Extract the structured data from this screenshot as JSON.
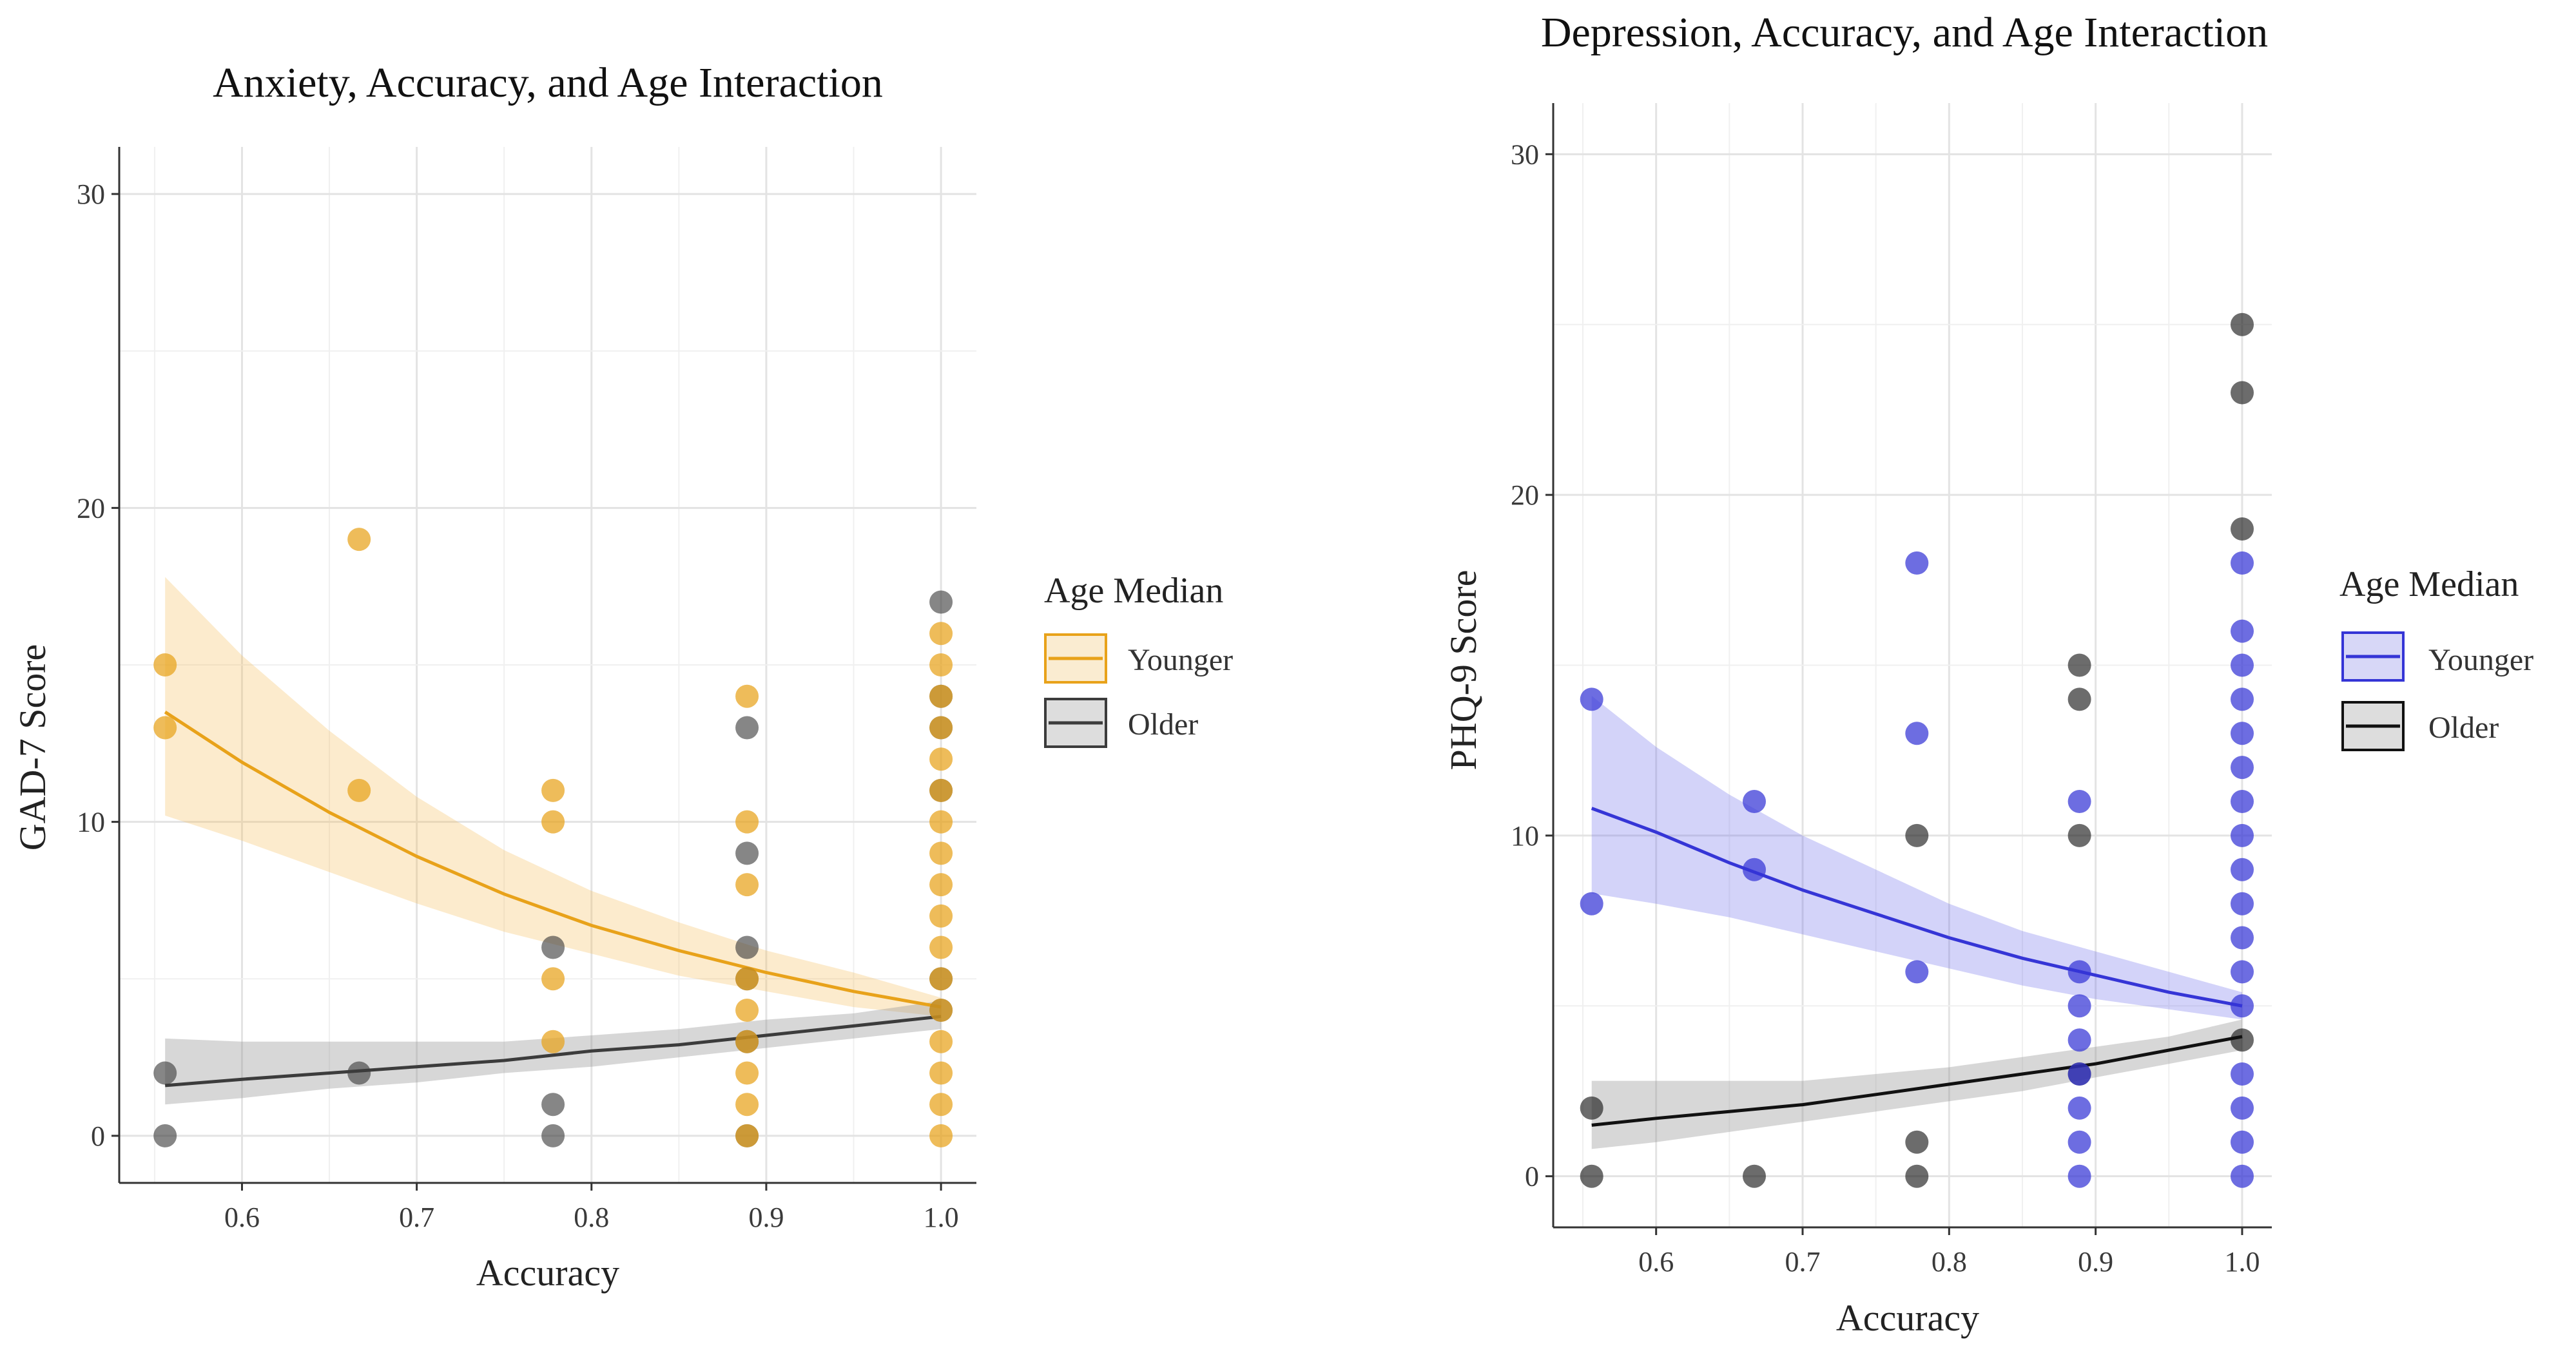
{
  "chart_data": [
    {
      "type": "scatter",
      "title": "Anxiety, Accuracy, and Age Interaction",
      "xlabel": "Accuracy",
      "ylabel": "GAD-7 Score",
      "xlim": [
        0.55,
        1.0
      ],
      "ylim": [
        0,
        30
      ],
      "xticks": [
        0.6,
        0.7,
        0.8,
        0.9,
        1.0
      ],
      "xtick_labels": [
        "0.6",
        "0.7",
        "0.8",
        "0.9",
        "1.0"
      ],
      "yticks": [
        0,
        10,
        20,
        30
      ],
      "ytick_labels": [
        "0",
        "10",
        "20",
        "30"
      ],
      "grid": true,
      "legend": {
        "title": "Age Median",
        "placement": "right",
        "entries": [
          {
            "label": "Younger",
            "color": "#e8a21a"
          },
          {
            "label": "Older",
            "color": "#3c3c3c"
          }
        ]
      },
      "series": [
        {
          "name": "Younger",
          "color": "#e8a21a",
          "points": [
            [
              0.556,
              15
            ],
            [
              0.556,
              13
            ],
            [
              0.667,
              19
            ],
            [
              0.667,
              11
            ],
            [
              0.778,
              11
            ],
            [
              0.778,
              10
            ],
            [
              0.778,
              5
            ],
            [
              0.778,
              3
            ],
            [
              0.889,
              14
            ],
            [
              0.889,
              10
            ],
            [
              0.889,
              8
            ],
            [
              0.889,
              5
            ],
            [
              0.889,
              4
            ],
            [
              0.889,
              3
            ],
            [
              0.889,
              2
            ],
            [
              0.889,
              1
            ],
            [
              0.889,
              0
            ],
            [
              1.0,
              16
            ],
            [
              1.0,
              15
            ],
            [
              1.0,
              14
            ],
            [
              1.0,
              13
            ],
            [
              1.0,
              12
            ],
            [
              1.0,
              11
            ],
            [
              1.0,
              10
            ],
            [
              1.0,
              9
            ],
            [
              1.0,
              8
            ],
            [
              1.0,
              7
            ],
            [
              1.0,
              6
            ],
            [
              1.0,
              5
            ],
            [
              1.0,
              4
            ],
            [
              1.0,
              3
            ],
            [
              1.0,
              2
            ],
            [
              1.0,
              1
            ],
            [
              1.0,
              0
            ]
          ],
          "fit_x": [
            0.556,
            0.6,
            0.65,
            0.7,
            0.75,
            0.8,
            0.85,
            0.9,
            0.95,
            1.0
          ],
          "fit_y": [
            13.5,
            11.9,
            10.3,
            8.9,
            7.7,
            6.7,
            5.9,
            5.2,
            4.6,
            4.1
          ],
          "ci_lower": [
            10.2,
            9.4,
            8.4,
            7.4,
            6.5,
            5.8,
            5.1,
            4.6,
            4.1,
            3.8
          ],
          "ci_upper": [
            17.8,
            15.3,
            12.9,
            10.8,
            9.1,
            7.8,
            6.8,
            5.9,
            5.2,
            4.4
          ]
        },
        {
          "name": "Older",
          "color": "#3c3c3c",
          "points": [
            [
              0.556,
              2
            ],
            [
              0.556,
              0
            ],
            [
              0.667,
              2
            ],
            [
              0.778,
              6
            ],
            [
              0.778,
              1
            ],
            [
              0.778,
              0
            ],
            [
              0.889,
              13
            ],
            [
              0.889,
              9
            ],
            [
              0.889,
              6
            ],
            [
              0.889,
              5
            ],
            [
              0.889,
              3
            ],
            [
              0.889,
              0
            ],
            [
              1.0,
              17
            ],
            [
              1.0,
              14
            ],
            [
              1.0,
              13
            ],
            [
              1.0,
              11
            ],
            [
              1.0,
              5
            ],
            [
              1.0,
              4
            ]
          ],
          "fit_x": [
            0.556,
            0.6,
            0.65,
            0.7,
            0.75,
            0.8,
            0.85,
            0.9,
            0.95,
            1.0
          ],
          "fit_y": [
            1.6,
            1.8,
            2.0,
            2.2,
            2.4,
            2.7,
            2.9,
            3.2,
            3.5,
            3.8
          ],
          "ci_lower": [
            1.0,
            1.2,
            1.5,
            1.7,
            2.0,
            2.2,
            2.5,
            2.8,
            3.1,
            3.4
          ],
          "ci_upper": [
            3.1,
            3.0,
            3.0,
            3.0,
            3.0,
            3.2,
            3.4,
            3.7,
            3.9,
            4.3
          ]
        }
      ]
    },
    {
      "type": "scatter",
      "title": "Depression, Accuracy, and Age Interaction",
      "xlabel": "Accuracy",
      "ylabel": "PHQ-9 Score",
      "xlim": [
        0.55,
        1.0
      ],
      "ylim": [
        0,
        30
      ],
      "xticks": [
        0.6,
        0.7,
        0.8,
        0.9,
        1.0
      ],
      "xtick_labels": [
        "0.6",
        "0.7",
        "0.8",
        "0.9",
        "1.0"
      ],
      "yticks": [
        0,
        10,
        20,
        30
      ],
      "ytick_labels": [
        "0",
        "10",
        "20",
        "30"
      ],
      "grid": true,
      "legend": {
        "title": "Age Median",
        "placement": "right",
        "entries": [
          {
            "label": "Younger",
            "color": "#3535d6"
          },
          {
            "label": "Older",
            "color": "#111111"
          }
        ]
      },
      "series": [
        {
          "name": "Younger",
          "color": "#3535d6",
          "points": [
            [
              0.556,
              14
            ],
            [
              0.556,
              8
            ],
            [
              0.667,
              11
            ],
            [
              0.667,
              9
            ],
            [
              0.778,
              18
            ],
            [
              0.778,
              13
            ],
            [
              0.778,
              6
            ],
            [
              0.889,
              11
            ],
            [
              0.889,
              6
            ],
            [
              0.889,
              5
            ],
            [
              0.889,
              4
            ],
            [
              0.889,
              3
            ],
            [
              0.889,
              2
            ],
            [
              0.889,
              1
            ],
            [
              0.889,
              0
            ],
            [
              1.0,
              18
            ],
            [
              1.0,
              16
            ],
            [
              1.0,
              15
            ],
            [
              1.0,
              14
            ],
            [
              1.0,
              13
            ],
            [
              1.0,
              12
            ],
            [
              1.0,
              11
            ],
            [
              1.0,
              10
            ],
            [
              1.0,
              9
            ],
            [
              1.0,
              8
            ],
            [
              1.0,
              7
            ],
            [
              1.0,
              6
            ],
            [
              1.0,
              5
            ],
            [
              1.0,
              3
            ],
            [
              1.0,
              2
            ],
            [
              1.0,
              1
            ],
            [
              1.0,
              0
            ]
          ],
          "fit_x": [
            0.556,
            0.6,
            0.65,
            0.7,
            0.75,
            0.8,
            0.85,
            0.9,
            0.95,
            1.0
          ],
          "fit_y": [
            10.8,
            10.1,
            9.2,
            8.4,
            7.7,
            7.0,
            6.4,
            5.9,
            5.4,
            5.0
          ],
          "ci_lower": [
            8.3,
            8.0,
            7.6,
            7.1,
            6.6,
            6.1,
            5.6,
            5.2,
            4.9,
            4.6
          ],
          "ci_upper": [
            14.1,
            12.6,
            11.2,
            10.0,
            9.0,
            8.0,
            7.2,
            6.6,
            6.0,
            5.4
          ]
        },
        {
          "name": "Older",
          "color": "#111111",
          "points": [
            [
              0.556,
              2
            ],
            [
              0.556,
              0
            ],
            [
              0.667,
              0
            ],
            [
              0.778,
              10
            ],
            [
              0.778,
              1
            ],
            [
              0.778,
              0
            ],
            [
              0.889,
              15
            ],
            [
              0.889,
              14
            ],
            [
              0.889,
              10
            ],
            [
              0.889,
              3
            ],
            [
              1.0,
              25
            ],
            [
              1.0,
              23
            ],
            [
              1.0,
              19
            ],
            [
              1.0,
              4
            ]
          ],
          "fit_x": [
            0.556,
            0.6,
            0.65,
            0.7,
            0.75,
            0.8,
            0.85,
            0.9,
            0.95,
            1.0
          ],
          "fit_y": [
            1.5,
            1.7,
            1.9,
            2.1,
            2.4,
            2.7,
            3.0,
            3.3,
            3.7,
            4.1
          ],
          "ci_lower": [
            0.8,
            1.0,
            1.3,
            1.6,
            1.9,
            2.2,
            2.5,
            2.9,
            3.3,
            3.7
          ],
          "ci_upper": [
            2.8,
            2.8,
            2.8,
            2.8,
            3.0,
            3.2,
            3.5,
            3.8,
            4.1,
            4.6
          ]
        }
      ]
    }
  ]
}
